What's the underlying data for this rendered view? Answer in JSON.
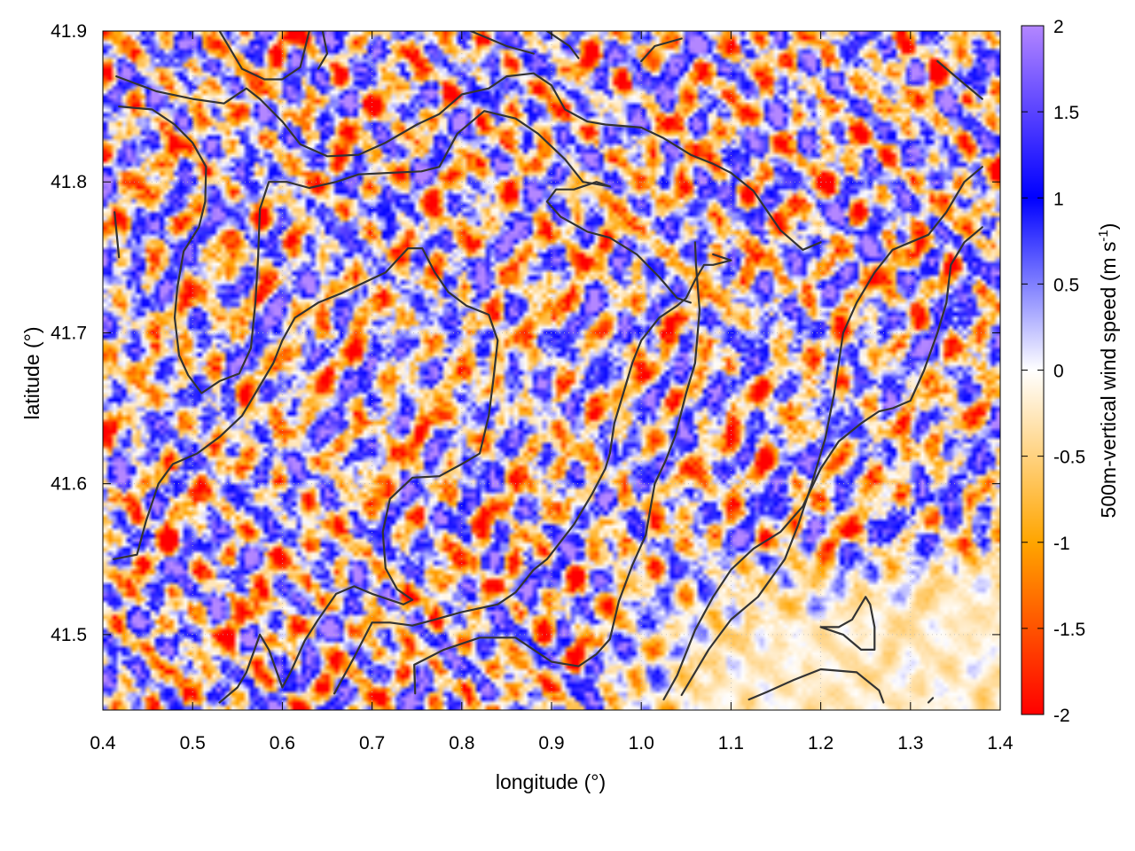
{
  "chart_data": {
    "type": "heatmap",
    "title": "",
    "xlabel": "longitude (°)",
    "ylabel": "latitude (°)",
    "colorbar_label": "500m-vertical wind speed (m s-1)",
    "colorbar_label_main": "500m-vertical wind speed (m s",
    "colorbar_label_sup": "-1",
    "colorbar_label_close": ")",
    "xlim": [
      0.4,
      1.4
    ],
    "ylim": [
      41.45,
      41.9
    ],
    "zlim": [
      -2,
      2
    ],
    "x_ticks": [
      "0.4",
      "0.5",
      "0.6",
      "0.7",
      "0.8",
      "0.9",
      "1.0",
      "1.1",
      "1.2",
      "1.3",
      "1.4"
    ],
    "y_ticks": [
      "41.5",
      "41.6",
      "41.7",
      "41.8",
      "41.9"
    ],
    "colorbar_ticks": [
      "2",
      "1.5",
      "1",
      "0.5",
      "0",
      "-0.5",
      "-1",
      "-1.5",
      "-2"
    ],
    "colorscale": [
      {
        "value": -2,
        "color": "#ff0000"
      },
      {
        "value": -1,
        "color": "#ffa500"
      },
      {
        "value": 0,
        "color": "#ffffff"
      },
      {
        "value": 1,
        "color": "#0000ff"
      },
      {
        "value": 2,
        "color": "#b386ff"
      }
    ],
    "grid": true,
    "field_description_calm_region": {
      "lon_min": 0.95,
      "lat_max": 41.56
    },
    "contours": [
      [
        [
          0.415,
          41.87
        ],
        [
          0.46,
          41.86
        ],
        [
          0.5,
          41.855
        ],
        [
          0.535,
          41.852
        ],
        [
          0.56,
          41.862
        ],
        [
          0.575,
          41.855
        ],
        [
          0.6,
          41.84
        ],
        [
          0.62,
          41.825
        ],
        [
          0.65,
          41.817
        ],
        [
          0.685,
          41.818
        ],
        [
          0.715,
          41.826
        ],
        [
          0.75,
          41.838
        ],
        [
          0.775,
          41.845
        ],
        [
          0.8,
          41.858
        ],
        [
          0.83,
          41.862
        ],
        [
          0.85,
          41.87
        ],
        [
          0.88,
          41.872
        ],
        [
          0.9,
          41.864
        ],
        [
          0.915,
          41.848
        ],
        [
          0.94,
          41.84
        ],
        [
          0.96,
          41.838
        ],
        [
          1.0,
          41.836
        ],
        [
          1.025,
          41.829
        ],
        [
          1.055,
          41.818
        ],
        [
          1.08,
          41.812
        ],
        [
          1.1,
          41.806
        ],
        [
          1.125,
          41.794
        ],
        [
          1.155,
          41.768
        ],
        [
          1.18,
          41.755
        ],
        [
          1.2,
          41.76
        ]
      ],
      [
        [
          0.418,
          41.85
        ],
        [
          0.455,
          41.848
        ],
        [
          0.48,
          41.838
        ],
        [
          0.5,
          41.826
        ],
        [
          0.515,
          41.81
        ],
        [
          0.514,
          41.787
        ],
        [
          0.507,
          41.77
        ],
        [
          0.49,
          41.754
        ],
        [
          0.483,
          41.73
        ],
        [
          0.48,
          41.71
        ],
        [
          0.485,
          41.685
        ],
        [
          0.495,
          41.672
        ],
        [
          0.51,
          41.66
        ],
        [
          0.53,
          41.668
        ],
        [
          0.552,
          41.673
        ],
        [
          0.565,
          41.69
        ],
        [
          0.57,
          41.72
        ],
        [
          0.573,
          41.75
        ],
        [
          0.575,
          41.782
        ],
        [
          0.585,
          41.8
        ],
        [
          0.605,
          41.8
        ],
        [
          0.63,
          41.796
        ],
        [
          0.66,
          41.8
        ],
        [
          0.685,
          41.805
        ],
        [
          0.72,
          41.806
        ],
        [
          0.755,
          41.807
        ],
        [
          0.775,
          41.81
        ],
        [
          0.795,
          41.832
        ],
        [
          0.825,
          41.847
        ],
        [
          0.86,
          41.842
        ],
        [
          0.885,
          41.832
        ],
        [
          0.915,
          41.815
        ],
        [
          0.935,
          41.8
        ],
        [
          0.965,
          41.797
        ],
        [
          0.95,
          41.8
        ],
        [
          0.925,
          41.795
        ],
        [
          0.905,
          41.795
        ],
        [
          0.895,
          41.787
        ],
        [
          0.91,
          41.777
        ],
        [
          0.94,
          41.767
        ],
        [
          0.965,
          41.763
        ],
        [
          0.995,
          41.752
        ],
        [
          1.02,
          41.737
        ],
        [
          1.04,
          41.723
        ],
        [
          1.055,
          41.72
        ]
      ],
      [
        [
          0.413,
          41.78
        ],
        [
          0.418,
          41.75
        ]
      ],
      [
        [
          0.412,
          41.55
        ],
        [
          0.438,
          41.553
        ],
        [
          0.448,
          41.575
        ],
        [
          0.462,
          41.6
        ],
        [
          0.478,
          41.613
        ],
        [
          0.505,
          41.62
        ],
        [
          0.53,
          41.631
        ],
        [
          0.555,
          41.645
        ],
        [
          0.573,
          41.663
        ],
        [
          0.59,
          41.68
        ],
        [
          0.6,
          41.695
        ],
        [
          0.614,
          41.71
        ],
        [
          0.64,
          41.72
        ],
        [
          0.665,
          41.726
        ],
        [
          0.69,
          41.733
        ],
        [
          0.715,
          41.74
        ],
        [
          0.74,
          41.756
        ],
        [
          0.756,
          41.756
        ],
        [
          0.77,
          41.74
        ],
        [
          0.785,
          41.727
        ],
        [
          0.805,
          41.718
        ],
        [
          0.83,
          41.712
        ],
        [
          0.84,
          41.695
        ],
        [
          0.835,
          41.668
        ],
        [
          0.83,
          41.645
        ],
        [
          0.82,
          41.62
        ],
        [
          0.8,
          41.613
        ],
        [
          0.775,
          41.605
        ],
        [
          0.745,
          41.604
        ],
        [
          0.72,
          41.59
        ],
        [
          0.712,
          41.568
        ],
        [
          0.715,
          41.544
        ],
        [
          0.728,
          41.53
        ],
        [
          0.745,
          41.523
        ],
        [
          0.735,
          41.52
        ],
        [
          0.7,
          41.527
        ],
        [
          0.68,
          41.532
        ],
        [
          0.66,
          41.527
        ],
        [
          0.64,
          41.51
        ],
        [
          0.625,
          41.496
        ],
        [
          0.61,
          41.476
        ],
        [
          0.6,
          41.465
        ],
        [
          0.585,
          41.49
        ],
        [
          0.575,
          41.5
        ],
        [
          0.56,
          41.475
        ],
        [
          0.55,
          41.465
        ],
        [
          0.53,
          41.455
        ]
      ],
      [
        [
          0.658,
          41.461
        ],
        [
          0.68,
          41.485
        ],
        [
          0.7,
          41.508
        ],
        [
          0.72,
          41.508
        ],
        [
          0.745,
          41.506
        ],
        [
          0.77,
          41.51
        ],
        [
          0.8,
          41.515
        ],
        [
          0.84,
          41.52
        ],
        [
          0.86,
          41.528
        ],
        [
          0.88,
          41.543
        ],
        [
          0.895,
          41.55
        ],
        [
          0.925,
          41.573
        ],
        [
          0.945,
          41.593
        ],
        [
          0.96,
          41.61
        ],
        [
          0.965,
          41.62
        ],
        [
          0.97,
          41.64
        ],
        [
          0.98,
          41.66
        ],
        [
          0.99,
          41.68
        ],
        [
          1.0,
          41.695
        ],
        [
          1.02,
          41.71
        ],
        [
          1.04,
          41.718
        ],
        [
          1.05,
          41.723
        ],
        [
          1.06,
          41.735
        ],
        [
          1.07,
          41.745
        ],
        [
          1.08,
          41.745
        ],
        [
          1.1,
          41.748
        ],
        [
          1.08,
          41.752
        ]
      ],
      [
        [
          0.748,
          41.461
        ],
        [
          0.747,
          41.48
        ],
        [
          0.78,
          41.49
        ],
        [
          0.82,
          41.498
        ],
        [
          0.86,
          41.498
        ],
        [
          0.88,
          41.49
        ],
        [
          0.9,
          41.482
        ],
        [
          0.93,
          41.479
        ],
        [
          0.95,
          41.487
        ],
        [
          0.965,
          41.497
        ],
        [
          0.975,
          41.522
        ],
        [
          0.99,
          41.546
        ],
        [
          1.005,
          41.566
        ],
        [
          1.015,
          41.6
        ],
        [
          1.027,
          41.615
        ],
        [
          1.038,
          41.632
        ],
        [
          1.05,
          41.66
        ],
        [
          1.06,
          41.68
        ],
        [
          1.065,
          41.715
        ],
        [
          1.061,
          41.745
        ],
        [
          1.06,
          41.76
        ]
      ],
      [
        [
          1.025,
          41.457
        ],
        [
          1.04,
          41.473
        ],
        [
          1.06,
          41.503
        ],
        [
          1.08,
          41.525
        ],
        [
          1.1,
          41.543
        ],
        [
          1.125,
          41.557
        ],
        [
          1.155,
          41.568
        ],
        [
          1.18,
          41.585
        ],
        [
          1.2,
          41.61
        ],
        [
          1.22,
          41.628
        ],
        [
          1.245,
          41.64
        ],
        [
          1.265,
          41.648
        ],
        [
          1.28,
          41.65
        ],
        [
          1.3,
          41.655
        ],
        [
          1.315,
          41.675
        ],
        [
          1.33,
          41.7
        ],
        [
          1.34,
          41.72
        ],
        [
          1.345,
          41.745
        ],
        [
          1.36,
          41.76
        ],
        [
          1.38,
          41.77
        ]
      ],
      [
        [
          1.045,
          41.46
        ],
        [
          1.075,
          41.49
        ],
        [
          1.1,
          41.51
        ],
        [
          1.13,
          41.525
        ],
        [
          1.16,
          41.55
        ],
        [
          1.175,
          41.573
        ],
        [
          1.19,
          41.6
        ],
        [
          1.205,
          41.63
        ],
        [
          1.215,
          41.66
        ],
        [
          1.225,
          41.7
        ],
        [
          1.24,
          41.72
        ],
        [
          1.26,
          41.74
        ],
        [
          1.28,
          41.755
        ],
        [
          1.3,
          41.76
        ],
        [
          1.32,
          41.765
        ],
        [
          1.34,
          41.78
        ],
        [
          1.36,
          41.8
        ],
        [
          1.38,
          41.81
        ]
      ],
      [
        [
          1.2,
          41.505
        ],
        [
          1.22,
          41.505
        ],
        [
          1.235,
          41.51
        ],
        [
          1.25,
          41.525
        ],
        [
          1.255,
          41.52
        ],
        [
          1.26,
          41.505
        ],
        [
          1.26,
          41.49
        ],
        [
          1.245,
          41.49
        ],
        [
          1.225,
          41.5
        ],
        [
          1.2,
          41.505
        ]
      ],
      [
        [
          1.12,
          41.457
        ],
        [
          1.14,
          41.462
        ],
        [
          1.17,
          41.47
        ],
        [
          1.2,
          41.477
        ],
        [
          1.24,
          41.475
        ],
        [
          1.265,
          41.463
        ],
        [
          1.27,
          41.455
        ]
      ],
      [
        [
          1.32,
          41.455
        ],
        [
          1.325,
          41.458
        ]
      ],
      [
        [
          0.53,
          41.9
        ],
        [
          0.555,
          41.875
        ],
        [
          0.58,
          41.868
        ],
        [
          0.6,
          41.868
        ],
        [
          0.62,
          41.876
        ],
        [
          0.63,
          41.9
        ]
      ],
      [
        [
          0.645,
          41.9
        ],
        [
          0.65,
          41.885
        ],
        [
          0.64,
          41.875
        ]
      ],
      [
        [
          0.81,
          41.9
        ],
        [
          0.85,
          41.89
        ],
        [
          0.88,
          41.885
        ]
      ],
      [
        [
          0.895,
          41.9
        ],
        [
          0.92,
          41.89
        ],
        [
          0.93,
          41.882
        ]
      ],
      [
        [
          1.0,
          41.88
        ],
        [
          1.015,
          41.89
        ],
        [
          1.045,
          41.895
        ]
      ],
      [
        [
          1.33,
          41.88
        ],
        [
          1.35,
          41.87
        ],
        [
          1.38,
          41.855
        ]
      ]
    ]
  }
}
